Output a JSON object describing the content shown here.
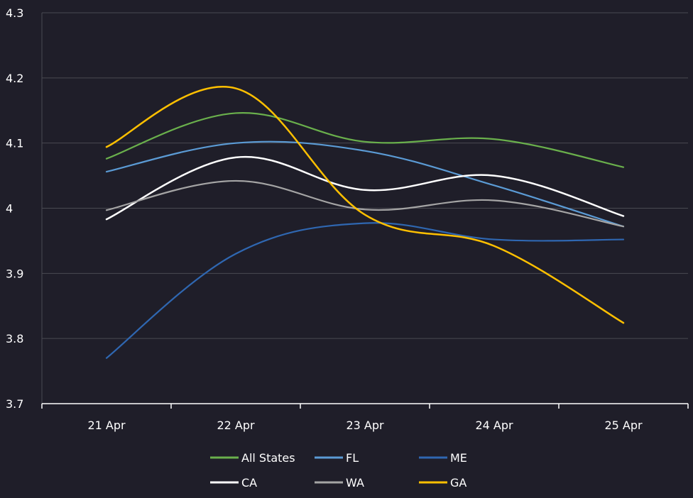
{
  "chart_data": {
    "type": "line",
    "categories": [
      "21 Apr",
      "22 Apr",
      "23 Apr",
      "24 Apr",
      "25 Apr"
    ],
    "ylim": [
      3.7,
      4.3
    ],
    "yticks": [
      "3.7",
      "3.8",
      "3.9",
      "4",
      "4.1",
      "4.2",
      "4.3"
    ],
    "grid": true,
    "legend_position": "bottom",
    "series": [
      {
        "name": "All States",
        "color": "#6ab04c",
        "values": [
          4.076,
          4.146,
          4.102,
          4.106,
          4.063
        ]
      },
      {
        "name": "FL",
        "color": "#5b9bd5",
        "values": [
          4.056,
          4.1,
          4.088,
          4.035,
          3.972
        ]
      },
      {
        "name": "ME",
        "color": "#2f67b1",
        "values": [
          3.77,
          3.93,
          3.977,
          3.952,
          3.952
        ]
      },
      {
        "name": "CA",
        "color": "#ffffff",
        "values": [
          3.983,
          4.078,
          4.028,
          4.05,
          3.988
        ]
      },
      {
        "name": "WA",
        "color": "#a5a5a5",
        "values": [
          3.997,
          4.042,
          3.998,
          4.012,
          3.972
        ]
      },
      {
        "name": "GA",
        "color": "#ffc000",
        "values": [
          4.094,
          4.184,
          3.99,
          3.942,
          3.824
        ]
      }
    ]
  }
}
